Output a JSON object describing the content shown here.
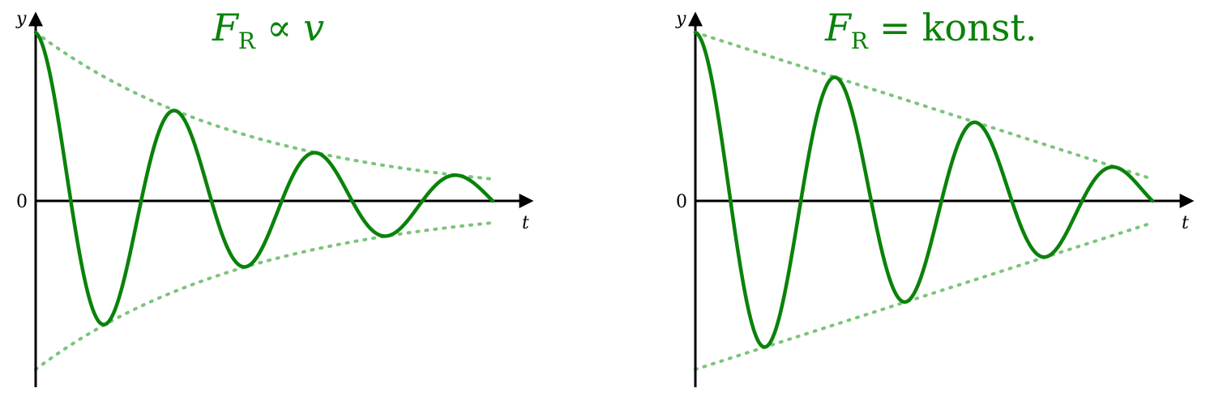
{
  "diagrams": [
    {
      "id": "left",
      "title_main": "F",
      "title_sub": "R",
      "title_rel": "∝",
      "title_rest": "v",
      "ylabel": "y",
      "xlabel": "t",
      "zero_label": "0",
      "damping": "exponential",
      "colors": {
        "curve": "#0a820a",
        "envelope": "#7cc47c"
      }
    },
    {
      "id": "right",
      "title_main": "F",
      "title_sub": "R",
      "title_rel": "=",
      "title_rest": "konst.",
      "ylabel": "y",
      "xlabel": "t",
      "zero_label": "0",
      "damping": "linear",
      "colors": {
        "curve": "#0a820a",
        "envelope": "#7cc47c"
      }
    }
  ]
}
